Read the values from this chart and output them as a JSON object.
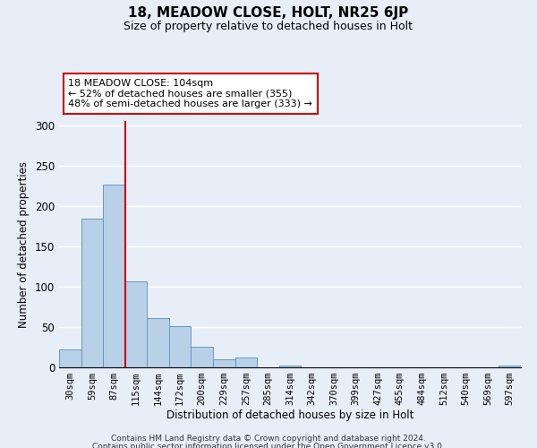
{
  "title": "18, MEADOW CLOSE, HOLT, NR25 6JP",
  "subtitle": "Size of property relative to detached houses in Holt",
  "xlabel": "Distribution of detached houses by size in Holt",
  "ylabel": "Number of detached properties",
  "bar_labels": [
    "30sqm",
    "59sqm",
    "87sqm",
    "115sqm",
    "144sqm",
    "172sqm",
    "200sqm",
    "229sqm",
    "257sqm",
    "285sqm",
    "314sqm",
    "342sqm",
    "370sqm",
    "399sqm",
    "427sqm",
    "455sqm",
    "484sqm",
    "512sqm",
    "540sqm",
    "569sqm",
    "597sqm"
  ],
  "bar_values": [
    22,
    184,
    226,
    106,
    61,
    51,
    26,
    10,
    12,
    0,
    2,
    0,
    0,
    0,
    0,
    0,
    0,
    0,
    0,
    0,
    2
  ],
  "bar_color": "#b8d0e8",
  "bar_edge_color": "#6699bb",
  "vline_x": 2.5,
  "vline_color": "#cc0000",
  "annotation_title": "18 MEADOW CLOSE: 104sqm",
  "annotation_line1": "← 52% of detached houses are smaller (355)",
  "annotation_line2": "48% of semi-detached houses are larger (333) →",
  "annotation_box_color": "#ffffff",
  "annotation_box_edge_color": "#cc0000",
  "ylim": [
    0,
    305
  ],
  "yticks": [
    0,
    50,
    100,
    150,
    200,
    250,
    300
  ],
  "footer1": "Contains HM Land Registry data © Crown copyright and database right 2024.",
  "footer2": "Contains public sector information licensed under the Open Government Licence v3.0.",
  "background_color": "#e8eef8"
}
